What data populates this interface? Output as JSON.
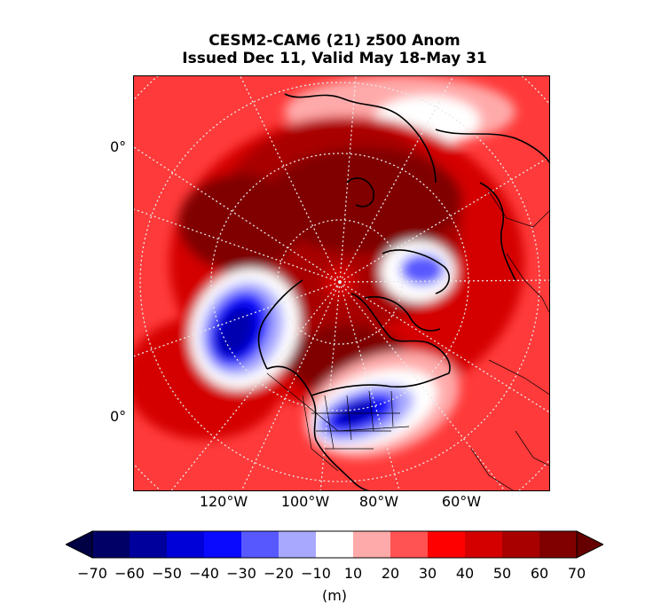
{
  "title": {
    "line1": "CESM2-CAM6 (21) z500 Anom",
    "line2": "Issued Dec 11, Valid May 18-May 31"
  },
  "map": {
    "lon_labels": [
      "120°W",
      "100°W",
      "80°W",
      "60°W"
    ],
    "lat_labels": [
      "0°",
      "0°"
    ]
  },
  "colorbar": {
    "ticks": [
      "−70",
      "−60",
      "−50",
      "−40",
      "−30",
      "−20",
      "−10",
      "10",
      "20",
      "30",
      "40",
      "50",
      "60",
      "70"
    ],
    "colors": [
      "#000066",
      "#00009c",
      "#0000d8",
      "#0a0aff",
      "#5858ff",
      "#a8a8ff",
      "#ffffff",
      "#ffaaaa",
      "#ff5252",
      "#ff0000",
      "#d40000",
      "#a80000",
      "#800000"
    ],
    "extend_low_color": "#000044",
    "extend_high_color": "#660000",
    "unit": "(m)"
  }
}
